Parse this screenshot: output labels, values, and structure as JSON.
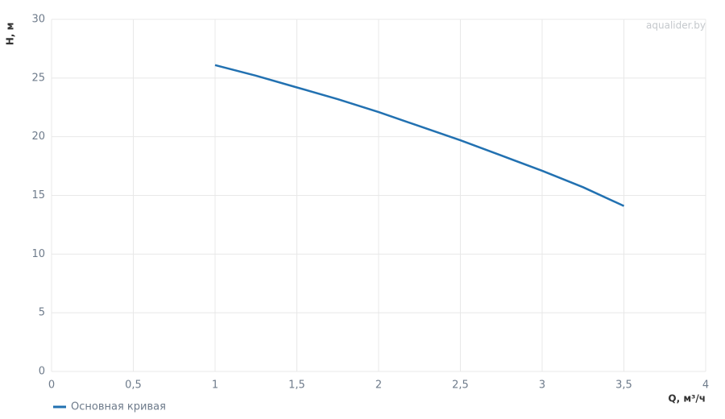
{
  "chart_data": {
    "type": "line",
    "watermark": "aqualider.by",
    "x_label": "Q, м³/ч",
    "y_label": "H, м",
    "x": [
      1,
      1.25,
      1.5,
      1.75,
      2,
      2.25,
      2.5,
      2.75,
      3,
      3.25,
      3.5
    ],
    "series": [
      {
        "name": "Основная кривая",
        "color": "#2271b1",
        "values": [
          26.1,
          25.2,
          24.2,
          23.2,
          22.1,
          20.9,
          19.7,
          18.4,
          17.1,
          15.7,
          14.1
        ]
      }
    ],
    "xlim": [
      0,
      4
    ],
    "xticks": [
      0,
      {
        "value": 0.5,
        "label": "0,5"
      },
      1,
      {
        "value": 1.5,
        "label": "1,5"
      },
      2,
      {
        "value": 2.5,
        "label": "2,5"
      },
      3,
      {
        "value": 3.5,
        "label": "3,5"
      },
      4
    ],
    "ylim": [
      0,
      30
    ],
    "yticks": [
      0,
      5,
      10,
      15,
      20,
      25,
      30
    ],
    "grid": true,
    "legend": "bottom-left"
  }
}
